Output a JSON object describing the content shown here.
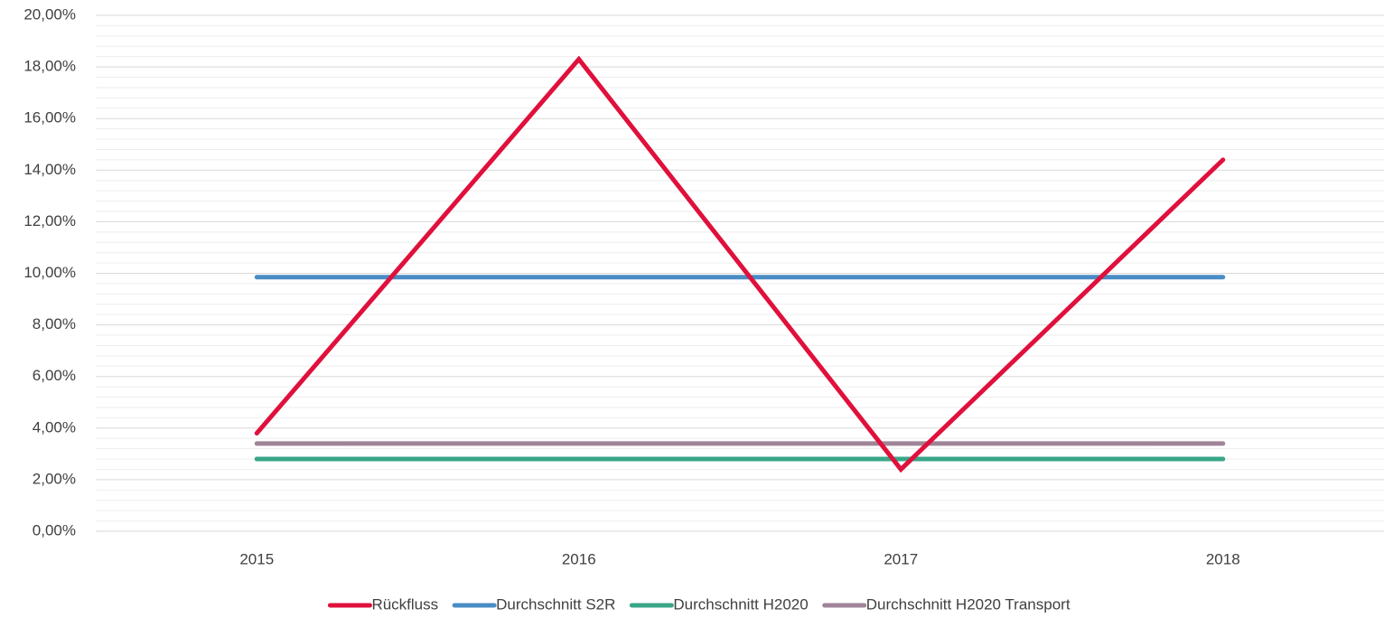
{
  "chart_data": {
    "type": "line",
    "categories": [
      "2015",
      "2016",
      "2017",
      "2018"
    ],
    "series": [
      {
        "name": "Rückfluss",
        "color": "#e0103c",
        "values": [
          3.8,
          18.3,
          2.4,
          14.4
        ]
      },
      {
        "name": "Durchschnitt S2R",
        "color": "#4a8cc4",
        "values": [
          9.85,
          9.85,
          9.85,
          9.85
        ]
      },
      {
        "name": "Durchschnitt H2020",
        "color": "#3aa688",
        "values": [
          2.8,
          2.8,
          2.8,
          2.8
        ]
      },
      {
        "name": "Durchschnitt H2020 Transport",
        "color": "#a08498",
        "values": [
          3.4,
          3.4,
          3.4,
          3.4
        ]
      }
    ],
    "ylim": [
      0,
      20
    ],
    "yticks": [
      {
        "value": 0,
        "label": "0,00%"
      },
      {
        "value": 2,
        "label": "2,00%"
      },
      {
        "value": 4,
        "label": "4,00%"
      },
      {
        "value": 6,
        "label": "6,00%"
      },
      {
        "value": 8,
        "label": "8,00%"
      },
      {
        "value": 10,
        "label": "10,00%"
      },
      {
        "value": 12,
        "label": "12,00%"
      },
      {
        "value": 14,
        "label": "14,00%"
      },
      {
        "value": 16,
        "label": "16,00%"
      },
      {
        "value": 18,
        "label": "18,00%"
      },
      {
        "value": 20,
        "label": "20,00%"
      }
    ],
    "grid": true,
    "minor_grid_divisions": 5,
    "legend": "bottom"
  }
}
